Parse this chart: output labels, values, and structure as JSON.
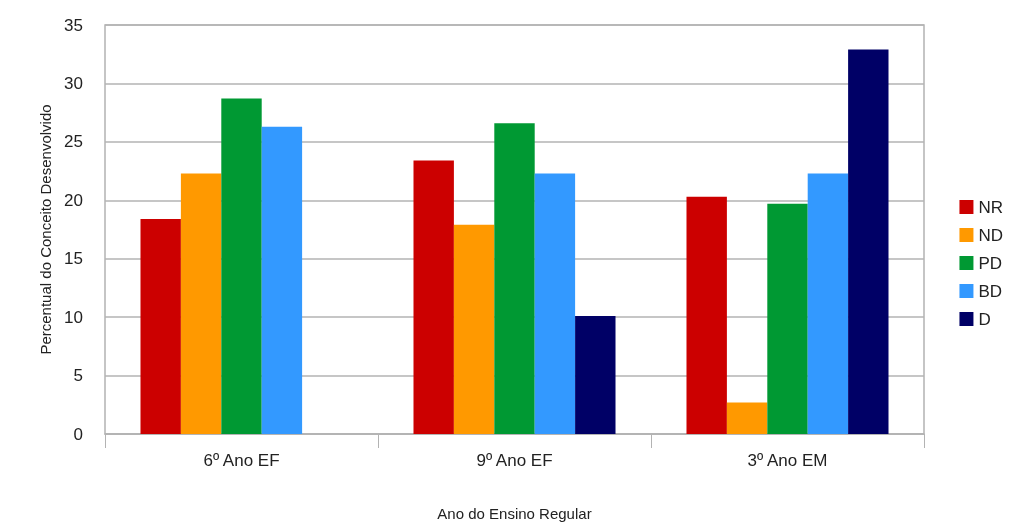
{
  "chart_data": {
    "type": "bar",
    "xlabel": "Ano do Ensino Regular",
    "ylabel": "Percentual do Conceito Desenvolvido",
    "categories": [
      "6º Ano EF",
      "9º Ano EF",
      "3º Ano EM"
    ],
    "series": [
      {
        "name": "NR",
        "color": "#cc0000",
        "values": [
          18.4,
          23.4,
          20.3
        ]
      },
      {
        "name": "ND",
        "color": "#ff9900",
        "values": [
          22.3,
          17.9,
          2.7
        ]
      },
      {
        "name": "PD",
        "color": "#009933",
        "values": [
          28.7,
          26.6,
          19.7
        ]
      },
      {
        "name": "BD",
        "color": "#3399ff",
        "values": [
          26.3,
          22.3,
          22.3
        ]
      },
      {
        "name": "D",
        "color": "#000066",
        "values": [
          0,
          10.1,
          32.9
        ]
      }
    ],
    "ylim": [
      0,
      35
    ],
    "yticks": [
      0,
      5,
      10,
      15,
      20,
      25,
      30,
      35
    ],
    "grid": "y",
    "legend": "right"
  }
}
